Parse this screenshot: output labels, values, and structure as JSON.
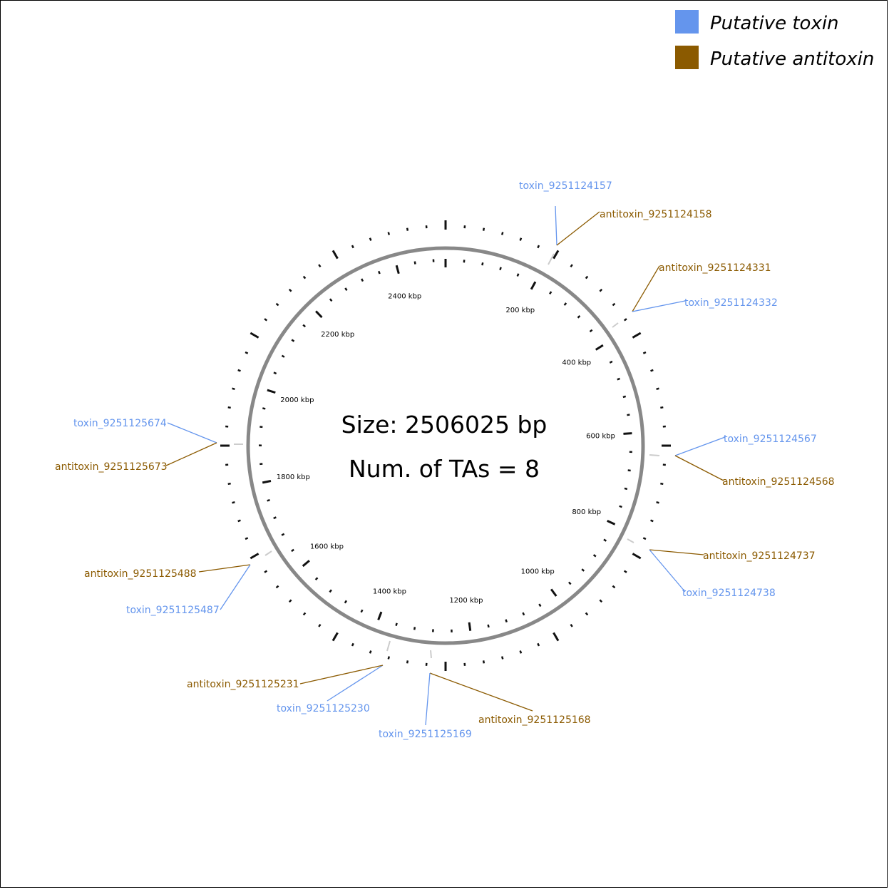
{
  "colors": {
    "toxin": "#6495ED",
    "antitoxin": "#8B5A00",
    "backbone": "#888888",
    "tick": "#111111"
  },
  "legend": [
    {
      "label": "Putative toxin",
      "color": "#6495ED"
    },
    {
      "label": "Putative antitoxin",
      "color": "#8B5A00"
    }
  ],
  "center": {
    "size_text": "Size: 2506025 bp",
    "count_text": "Num. of TAs = 8"
  },
  "genome": {
    "length_bp": 2506025,
    "tick_labels": [
      "200 kbp",
      "400 kbp",
      "600 kbp",
      "800 kbp",
      "1000 kbp",
      "1200 kbp",
      "1400 kbp",
      "1600 kbp",
      "1800 kbp",
      "2000 kbp",
      "2200 kbp",
      "2400 kbp"
    ]
  },
  "features": [
    {
      "name": "toxin_9251124157",
      "type": "toxin"
    },
    {
      "name": "antitoxin_9251124158",
      "type": "antitoxin"
    },
    {
      "name": "antitoxin_9251124331",
      "type": "antitoxin"
    },
    {
      "name": "toxin_9251124332",
      "type": "toxin"
    },
    {
      "name": "toxin_9251124567",
      "type": "toxin"
    },
    {
      "name": "antitoxin_9251124568",
      "type": "antitoxin"
    },
    {
      "name": "antitoxin_9251124737",
      "type": "antitoxin"
    },
    {
      "name": "toxin_9251124738",
      "type": "toxin"
    },
    {
      "name": "antitoxin_9251125168",
      "type": "antitoxin"
    },
    {
      "name": "toxin_9251125169",
      "type": "toxin"
    },
    {
      "name": "toxin_9251125230",
      "type": "toxin"
    },
    {
      "name": "antitoxin_9251125231",
      "type": "antitoxin"
    },
    {
      "name": "antitoxin_9251125488",
      "type": "antitoxin"
    },
    {
      "name": "toxin_9251125487",
      "type": "toxin"
    },
    {
      "name": "toxin_9251125674",
      "type": "toxin"
    },
    {
      "name": "antitoxin_9251125673",
      "type": "antitoxin"
    }
  ]
}
